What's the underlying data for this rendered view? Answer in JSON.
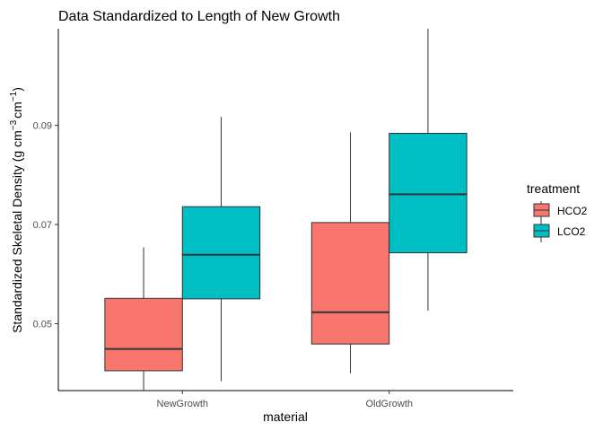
{
  "chart_data": {
    "type": "boxplot",
    "title": "Data Standardized to Length of New Growth",
    "xlabel": "material",
    "ylabel_main": "Standardized Skeletal Density (g cm",
    "ylabel_sup1": "−3",
    "ylabel_mid": "cm",
    "ylabel_sup2": "−1",
    "ylabel_end": ")",
    "categories": [
      "NewGrowth",
      "OldGrowth"
    ],
    "ylim": [
      0.0365,
      0.1095
    ],
    "yticks": [
      0.05,
      0.07,
      0.09
    ],
    "ytick_labels": [
      "0.05",
      "0.07",
      "0.09"
    ],
    "legend": {
      "title": "treatment",
      "position": "right"
    },
    "series": [
      {
        "name": "HCO2",
        "color": "#F8766D",
        "boxes": [
          {
            "category": "NewGrowth",
            "whisker_low": 0.0365,
            "q1": 0.0405,
            "median": 0.0449,
            "q3": 0.0551,
            "whisker_high": 0.0654
          },
          {
            "category": "OldGrowth",
            "whisker_low": 0.04,
            "q1": 0.0459,
            "median": 0.0523,
            "q3": 0.0704,
            "whisker_high": 0.0886
          }
        ]
      },
      {
        "name": "LCO2",
        "color": "#00BFC4",
        "boxes": [
          {
            "category": "NewGrowth",
            "whisker_low": 0.0384,
            "q1": 0.055,
            "median": 0.0639,
            "q3": 0.0736,
            "whisker_high": 0.0917
          },
          {
            "category": "OldGrowth",
            "whisker_low": 0.0526,
            "q1": 0.0643,
            "median": 0.0761,
            "q3": 0.0884,
            "whisker_high": 0.1095
          }
        ]
      }
    ]
  }
}
